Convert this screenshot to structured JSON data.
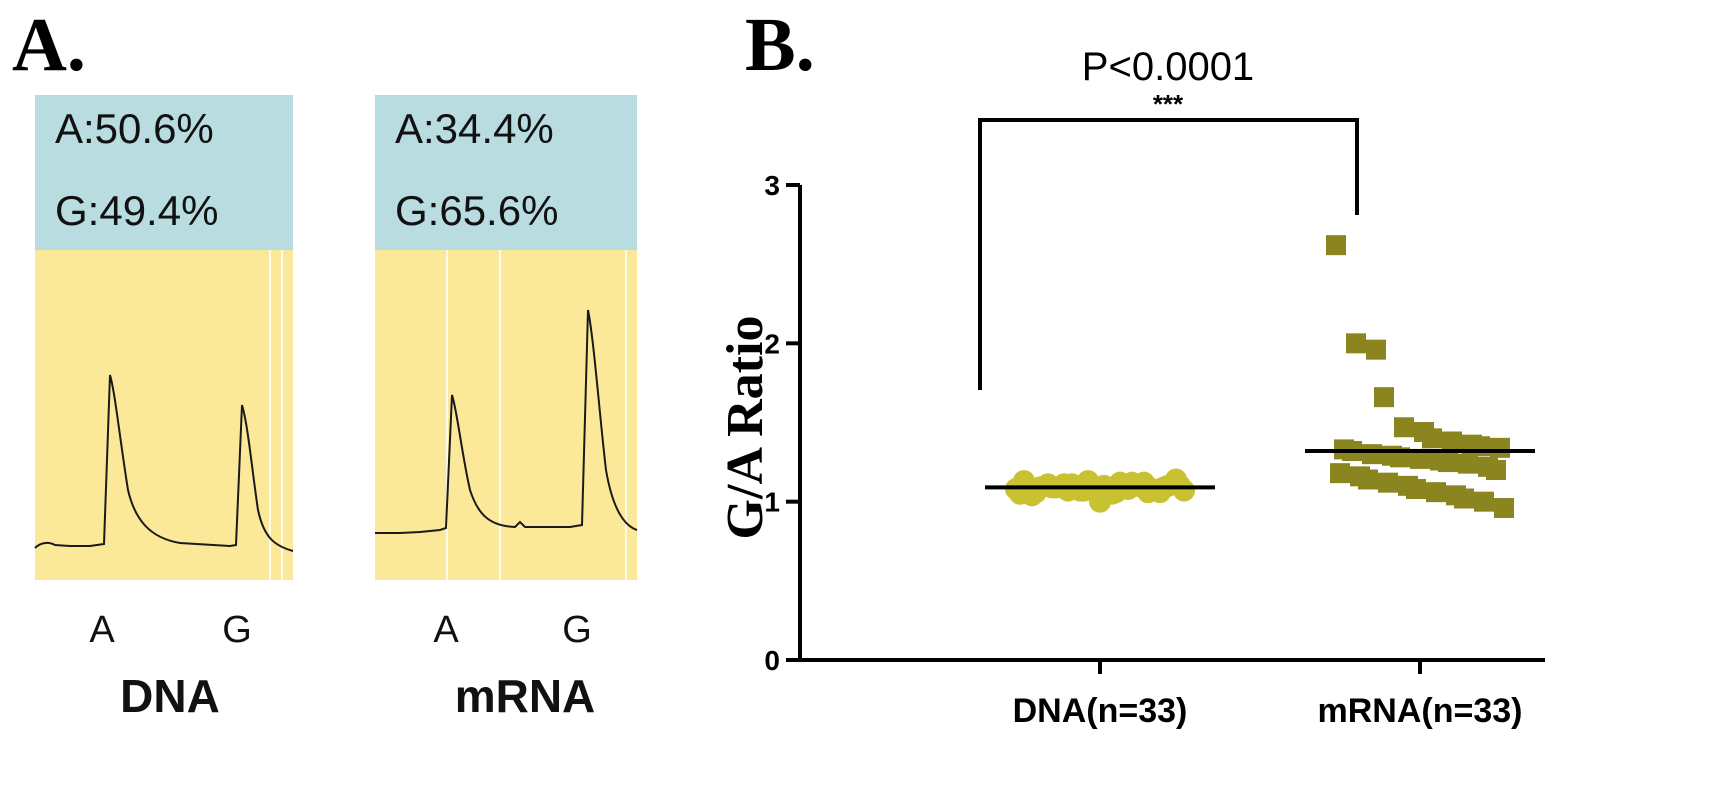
{
  "panel_a": {
    "label": "A.",
    "traces": [
      {
        "composition": [
          "A:50.6%",
          "G:49.4%"
        ],
        "peak_labels": [
          "A",
          "G"
        ],
        "sample_label": "DNA"
      },
      {
        "composition": [
          "A:34.4%",
          "G:65.6%"
        ],
        "peak_labels": [
          "A",
          "G"
        ],
        "sample_label": "mRNA"
      }
    ],
    "colors": {
      "header": "#b8dce0",
      "trace_bg": "#fbe898",
      "trace_line": "#1a1a1a"
    }
  },
  "panel_b": {
    "label": "B.",
    "significance": {
      "p_text": "P<0.0001",
      "stars": "***"
    },
    "colors": {
      "dna": "#c8c230",
      "mrna": "#8b8520",
      "mean_line": "#000000"
    }
  },
  "chart_data": {
    "type": "scatter",
    "xlabel": "",
    "ylabel": "G/A Ratio",
    "ylim": [
      0,
      3
    ],
    "yticks": [
      0,
      1,
      2,
      3
    ],
    "categories": [
      "DNA(n=33)",
      "mRNA(n=33)"
    ],
    "series": [
      {
        "category": "DNA(n=33)",
        "marker": "circle",
        "mean": 1.09,
        "values": [
          1.08,
          1.06,
          1.09,
          1.11,
          1.07,
          1.1,
          1.05,
          1.12,
          1.08,
          1.06,
          1.1,
          1.13,
          1.04,
          1.09,
          1.11,
          1.07,
          1.0,
          1.12,
          1.08,
          1.06,
          1.1,
          1.14,
          1.05,
          1.09,
          1.11,
          1.07,
          1.13,
          1.08,
          1.06,
          1.1,
          1.12,
          1.09,
          1.07
        ]
      },
      {
        "category": "mRNA(n=33)",
        "marker": "square",
        "mean": 1.32,
        "values": [
          2.62,
          2.0,
          1.96,
          1.66,
          1.47,
          1.44,
          1.4,
          1.38,
          1.36,
          1.35,
          1.34,
          1.33,
          1.32,
          1.3,
          1.29,
          1.28,
          1.27,
          1.26,
          1.25,
          1.24,
          1.22,
          1.2,
          1.18,
          1.16,
          1.14,
          1.12,
          1.1,
          1.08,
          1.06,
          1.04,
          1.02,
          1.0,
          0.96
        ]
      }
    ]
  }
}
